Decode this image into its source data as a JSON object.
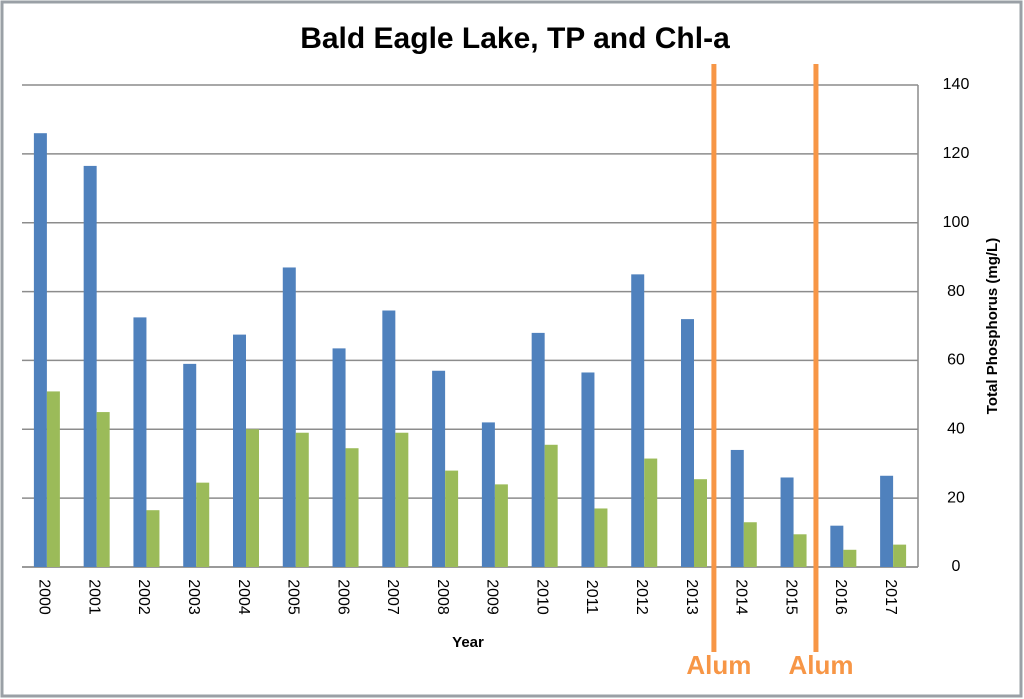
{
  "chart_data": {
    "type": "bar",
    "title": "Bald Eagle Lake, TP and Chl-a",
    "xlabel": "Year",
    "ylabel": "Total Phosphorus (mg/L)",
    "categories": [
      "2000",
      "2001",
      "2002",
      "2003",
      "2004",
      "2005",
      "2006",
      "2007",
      "2008",
      "2009",
      "2010",
      "2011",
      "2012",
      "2013",
      "2014",
      "2015",
      "2016",
      "2017"
    ],
    "series": [
      {
        "color": "#4f81bd",
        "values": [
          126,
          116.5,
          72.5,
          59,
          67.5,
          87,
          63.5,
          74.5,
          57,
          42,
          68,
          56.5,
          85,
          72,
          34,
          26,
          12,
          26.5
        ]
      },
      {
        "color": "#9bbb59",
        "values": [
          51,
          45,
          16.5,
          24.5,
          40,
          39,
          34.5,
          39,
          28,
          24,
          35.5,
          17,
          31.5,
          25.5,
          13,
          9.5,
          5,
          6.5
        ]
      }
    ],
    "ylim": [
      0,
      140
    ],
    "yticks": [
      0,
      20,
      40,
      60,
      80,
      100,
      120,
      140
    ],
    "grid": true,
    "annotations": [
      {
        "label": "Alum",
        "color": "#f79646"
      },
      {
        "label": "Alum",
        "color": "#f79646"
      }
    ]
  }
}
